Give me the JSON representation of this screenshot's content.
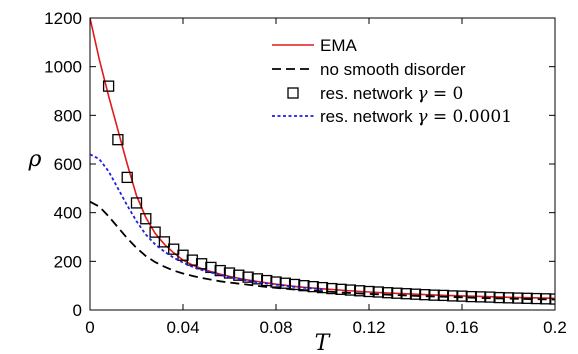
{
  "chart_data": {
    "type": "line",
    "xlabel": "T",
    "ylabel": "ρ",
    "xlim": [
      0,
      0.2
    ],
    "ylim": [
      0,
      1200
    ],
    "xticks": [
      0,
      0.04,
      0.08,
      0.12,
      0.16,
      0.2
    ],
    "xtick_labels": [
      "0",
      "0.04",
      "0.08",
      "0.12",
      "0.16",
      "0.2"
    ],
    "yticks": [
      0,
      200,
      400,
      600,
      800,
      1000,
      1200
    ],
    "ytick_labels": [
      "0",
      "200",
      "400",
      "600",
      "800",
      "1000",
      "1200"
    ],
    "grid": false,
    "legend_position": "top-right",
    "series": [
      {
        "name": "EMA",
        "style": "solid",
        "color": "#e31a1c",
        "x": [
          0,
          0.004,
          0.008,
          0.012,
          0.016,
          0.02,
          0.024,
          0.028,
          0.032,
          0.036,
          0.04,
          0.044,
          0.048,
          0.052,
          0.056,
          0.06,
          0.066,
          0.072,
          0.08,
          0.09,
          0.1,
          0.11,
          0.12,
          0.13,
          0.14,
          0.15,
          0.16,
          0.17,
          0.18,
          0.19,
          0.2
        ],
        "y": [
          1200,
          1030,
          880,
          740,
          600,
          470,
          380,
          315,
          270,
          235,
          205,
          185,
          170,
          158,
          147,
          138,
          126,
          117,
          106,
          95,
          87,
          80,
          74,
          69,
          65,
          61,
          58,
          55,
          52,
          50,
          48
        ]
      },
      {
        "name": "no smooth disorder",
        "style": "dashed",
        "color": "#000000",
        "x": [
          0,
          0.004,
          0.008,
          0.012,
          0.016,
          0.02,
          0.024,
          0.028,
          0.032,
          0.036,
          0.04,
          0.044,
          0.048,
          0.052,
          0.056,
          0.06,
          0.066,
          0.072,
          0.08,
          0.09,
          0.1,
          0.11,
          0.12,
          0.13,
          0.14,
          0.15,
          0.16,
          0.17,
          0.18,
          0.19,
          0.2
        ],
        "y": [
          445,
          425,
          385,
          340,
          295,
          255,
          222,
          197,
          178,
          162,
          150,
          140,
          132,
          125,
          118,
          113,
          106,
          99,
          91,
          83,
          77,
          71,
          66,
          62,
          58,
          55,
          52,
          49,
          47,
          45,
          43
        ]
      },
      {
        "name": "res. network γ = 0",
        "style": "markers",
        "marker": "square",
        "color": "#000000",
        "x": [
          0.008,
          0.012,
          0.016,
          0.02,
          0.024,
          0.028,
          0.032,
          0.036,
          0.04,
          0.044,
          0.048,
          0.052,
          0.056,
          0.06,
          0.064,
          0.068,
          0.072,
          0.076,
          0.08,
          0.084,
          0.088,
          0.092,
          0.096,
          0.1,
          0.104,
          0.108,
          0.112,
          0.116,
          0.12,
          0.124,
          0.128,
          0.132,
          0.136,
          0.14,
          0.144,
          0.148,
          0.152,
          0.156,
          0.16,
          0.164,
          0.168,
          0.172,
          0.176,
          0.18,
          0.184,
          0.188,
          0.192,
          0.196,
          0.2
        ],
        "y": [
          920,
          700,
          545,
          440,
          375,
          320,
          280,
          250,
          225,
          205,
          190,
          175,
          162,
          152,
          143,
          135,
          128,
          121,
          115,
          110,
          105,
          100,
          96,
          92,
          88,
          85,
          82,
          79,
          76,
          74,
          71,
          69,
          67,
          65,
          63,
          61,
          60,
          58,
          57,
          55,
          54,
          53,
          51,
          50,
          49,
          48,
          47,
          46,
          45
        ]
      },
      {
        "name": "res. network γ = 0.0001",
        "style": "dotted",
        "color": "#1f1fe0",
        "x": [
          0,
          0.004,
          0.008,
          0.012,
          0.016,
          0.02,
          0.024,
          0.028,
          0.032,
          0.036,
          0.04,
          0.044,
          0.048,
          0.052,
          0.056,
          0.06,
          0.066,
          0.072,
          0.08,
          0.09,
          0.1
        ],
        "y": [
          640,
          620,
          570,
          500,
          430,
          365,
          310,
          270,
          240,
          215,
          195,
          178,
          165,
          154,
          144,
          135,
          124,
          114,
          104,
          93,
          85
        ]
      }
    ],
    "legend": [
      {
        "series": 0,
        "label": "EMA",
        "math": "",
        "num": ""
      },
      {
        "series": 1,
        "label": "no smooth disorder",
        "math": "",
        "num": ""
      },
      {
        "series": 2,
        "label": "res. network ",
        "math": "γ",
        "num": " = 0"
      },
      {
        "series": 3,
        "label": "res. network ",
        "math": "γ",
        "num": " = 0.0001"
      }
    ]
  }
}
